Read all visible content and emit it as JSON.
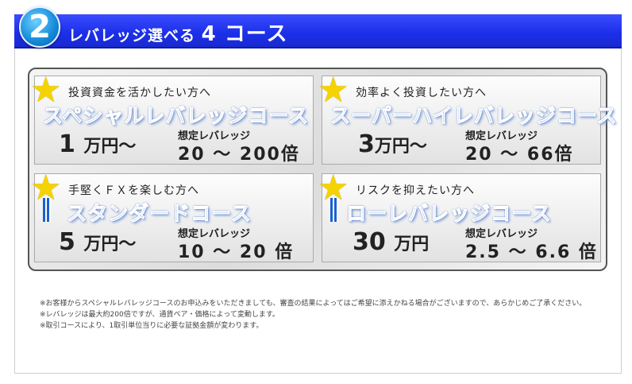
{
  "header": {
    "number": "2",
    "title_prefix": "レバレッジ選べる",
    "title_big": "4 コース"
  },
  "courses": [
    {
      "subtitle": "投資資金を活かしたい方へ",
      "name": "スペシャルレバレッジコース",
      "minimum": "1",
      "unit": "万円～",
      "leverage_label": "想定レバレッジ",
      "leverage": "20 ～ 200倍",
      "icon": "star-icon"
    },
    {
      "subtitle": "効率よく投資したい方へ",
      "name": "スーパーハイレバレッジコース",
      "minimum": "3",
      "unit": "万円～",
      "leverage_label": "想定レバレッジ",
      "leverage": "20 ～ 66倍",
      "icon": "star-icon"
    },
    {
      "subtitle": "手堅くＦＸを楽しむ方へ",
      "name": "スタンダードコース",
      "minimum": "5",
      "unit": "万円～",
      "leverage_label": "想定レバレッジ",
      "leverage": "10 ～ 20 倍",
      "icon": "star-ribbon-icon"
    },
    {
      "subtitle": "リスクを抑えたい方へ",
      "name": "ローレバレッジコース",
      "minimum": "30",
      "unit": "万円",
      "leverage_label": "想定レバレッジ",
      "leverage": "2.5 ～ 6.6 倍",
      "icon": "star-ribbon-icon"
    }
  ],
  "notes": [
    "※お客様からスペシャルレバレッジコースのお申込みをいただきましても、審査の結果によってはご希望に添えかねる場合がございますので、あらかじめご了承ください。",
    "※レバレッジは最大約200倍ですが、通貨ペア・価格によって変動します。",
    "※取引コースにより、1取引単位当りに必要な証拠金額が変わります。"
  ]
}
